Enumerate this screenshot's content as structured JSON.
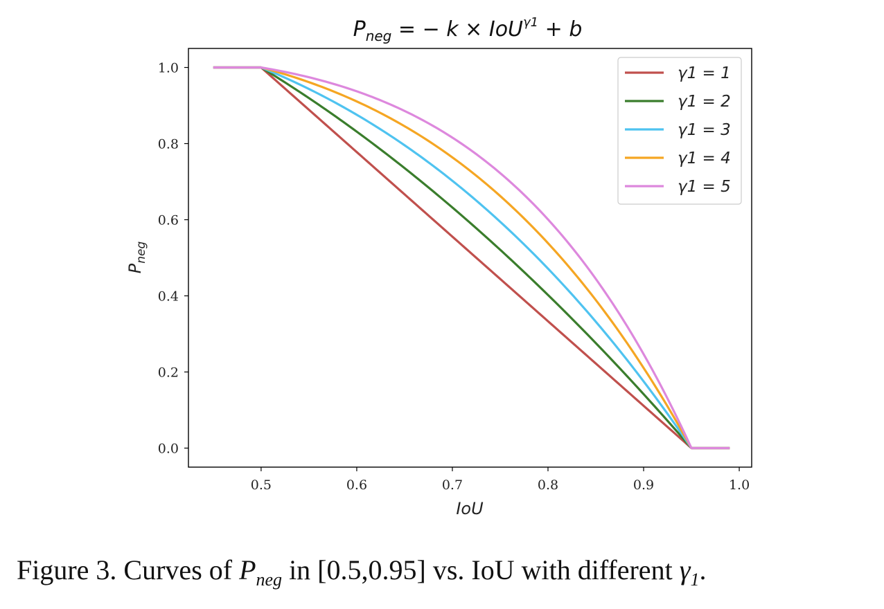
{
  "chart_data": {
    "type": "line",
    "title": {
      "main": "P",
      "sub": "neg",
      "eq": " = − k × IoU",
      "sup": "γ1",
      "tail": " + b"
    },
    "xlabel": "IoU",
    "ylabel": {
      "main": "P",
      "sub": "neg"
    },
    "xlim": [
      0.424,
      1.013
    ],
    "ylim": [
      -0.05,
      1.05
    ],
    "xticks": [
      0.5,
      0.6,
      0.7,
      0.8,
      0.9,
      1.0
    ],
    "xtick_labels": [
      "0.5",
      "0.6",
      "0.7",
      "0.8",
      "0.9",
      "1.0"
    ],
    "yticks": [
      0.0,
      0.2,
      0.4,
      0.6,
      0.8,
      1.0
    ],
    "ytick_labels": [
      "0.0",
      "0.2",
      "0.4",
      "0.6",
      "0.8",
      "1.0"
    ],
    "x_start": 0.45,
    "flat_high_end": 0.5,
    "flat_low_start": 0.95,
    "x_end": 0.99,
    "legend_position": "top-right",
    "series": [
      {
        "name": "γ1 = 1",
        "gamma": 1,
        "color": "#c0504d"
      },
      {
        "name": "γ1 = 2",
        "gamma": 2,
        "color": "#3a7d2c"
      },
      {
        "name": "γ1 = 3",
        "gamma": 3,
        "color": "#4fc3f0"
      },
      {
        "name": "γ1 = 4",
        "gamma": 4,
        "color": "#f5a623"
      },
      {
        "name": "γ1 = 5",
        "gamma": 5,
        "color": "#dd88dd"
      }
    ]
  },
  "caption": {
    "prefix": "Figure 3. Curves of ",
    "math_main": "P",
    "math_sub": "neg",
    "middle": " in [0.5,0.95] vs. IoU with different ",
    "gamma_main": "γ",
    "gamma_sub": "1",
    "suffix": "."
  }
}
